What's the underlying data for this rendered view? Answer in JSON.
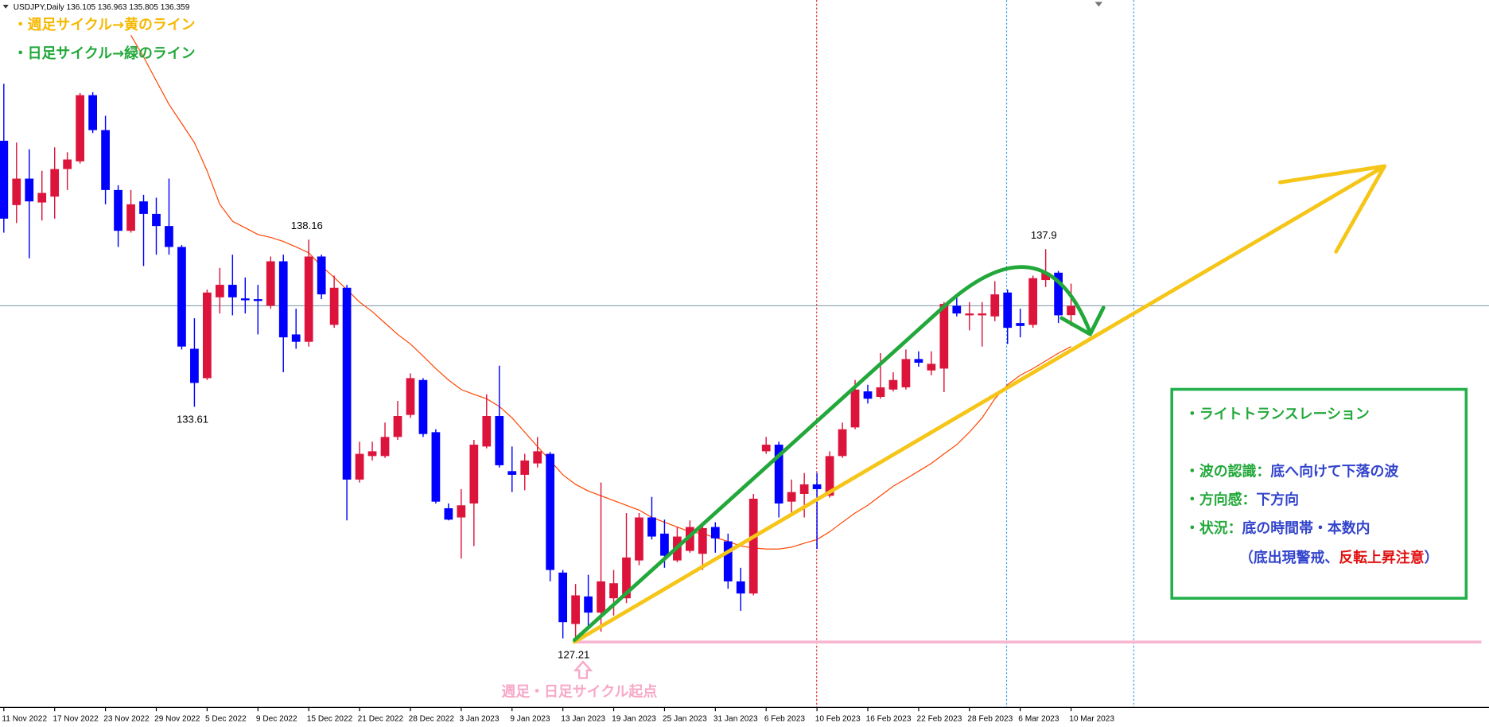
{
  "header": "USDJPY,Daily  136.105 136.963 135.805 136.359",
  "notes": [
    {
      "text": "・週足サイクル→黄のライン",
      "color": "#f5b800"
    },
    {
      "text": "・日足サイクル→緑のライン",
      "color": "#22a83a"
    }
  ],
  "box": {
    "border_color": "#22b04b",
    "lines": [
      [
        {
          "text": "・ライトトランスレーション",
          "color": "#22a83a"
        }
      ],
      [
        {
          "text": "・波の認識：",
          "color": "#22a83a"
        },
        {
          "text": "底へ向けて下落の波",
          "color": "#3344cc"
        }
      ],
      [
        {
          "text": "・方向感：",
          "color": "#22a83a"
        },
        {
          "text": "下方向",
          "color": "#3344cc"
        }
      ],
      [
        {
          "text": "・状況：",
          "color": "#22a83a"
        },
        {
          "text": "底の時間帯・本数内",
          "color": "#3344cc"
        }
      ],
      [
        {
          "text": "（底出現警戒、",
          "color": "#3344cc"
        },
        {
          "text": "反転上昇注意",
          "color": "#e01010"
        },
        {
          "text": "）",
          "color": "#3344cc"
        }
      ]
    ]
  },
  "origin_label": {
    "text": "週足・日足サイクル起点",
    "color": "#f7a8c8"
  },
  "chart_data": {
    "type": "candlestick",
    "up_color": "#dc143c",
    "down_color": "#0000ff",
    "ylim": [
      125.43,
      144.68
    ],
    "x": [
      "11 Nov 2022",
      null,
      null,
      null,
      "17 Nov 2022",
      null,
      null,
      null,
      "23 Nov 2022",
      null,
      null,
      null,
      "29 Nov 2022",
      null,
      null,
      null,
      "5 Dec 2022",
      null,
      null,
      null,
      "9 Dec 2022",
      null,
      null,
      null,
      "15 Dec 2022",
      null,
      null,
      null,
      "21 Dec 2022",
      null,
      null,
      null,
      "28 Dec 2022",
      null,
      null,
      null,
      "3 Jan 2023",
      null,
      null,
      null,
      "9 Jan 2023",
      null,
      null,
      null,
      "13 Jan 2023",
      null,
      null,
      null,
      "19 Jan 2023",
      null,
      null,
      null,
      "25 Jan 2023",
      null,
      null,
      null,
      "31 Jan 2023",
      null,
      null,
      null,
      "6 Feb 2023",
      null,
      null,
      null,
      "10 Feb 2023",
      null,
      null,
      null,
      "16 Feb 2023",
      null,
      null,
      null,
      "22 Feb 2023",
      null,
      null,
      null,
      "28 Feb 2023",
      null,
      null,
      null,
      "6 Mar 2023",
      null,
      null,
      null,
      "10 Mar 2023"
    ],
    "open": [
      140.85,
      139.1,
      139.82,
      139.17,
      139.33,
      140.08,
      140.29,
      142.09,
      141.14,
      139.51,
      138.4,
      139.2,
      138.86,
      138.53,
      137.96,
      135.19,
      134.39,
      136.59,
      136.93,
      136.56,
      136.54,
      136.36,
      137.57,
      135.58,
      135.38,
      137.7,
      135.84,
      136.85,
      131.63,
      132.27,
      132.27,
      132.79,
      133.39,
      134.34,
      132.92,
      130.85,
      130.6,
      130.98,
      132.53,
      133.36,
      131.86,
      131.76,
      132.07,
      132.33,
      129.1,
      127.7,
      128.45,
      128.01,
      128.4,
      128.4,
      129.43,
      130.6,
      130.16,
      129.43,
      129.69,
      129.61,
      130.34,
      129.95,
      128.86,
      128.53,
      132.4,
      132.58,
      131.03,
      131.24,
      131.5,
      131.19,
      132.27,
      133.05,
      134.03,
      133.88,
      134.08,
      134.14,
      134.91,
      134.6,
      134.65,
      136.36,
      136.1,
      136.1,
      136.07,
      136.72,
      135.89,
      135.84,
      137.06,
      137.26,
      136.105
    ],
    "high": [
      142.4,
      140.8,
      140.62,
      140.03,
      140.67,
      140.54,
      142.15,
      142.17,
      141.53,
      139.64,
      139.51,
      139.38,
      139.3,
      139.82,
      138.01,
      136.02,
      136.8,
      137.39,
      137.75,
      137.13,
      136.93,
      137.7,
      137.75,
      136.28,
      138.16,
      137.75,
      137.18,
      136.93,
      132.66,
      132.66,
      133.18,
      133.77,
      134.52,
      134.39,
      133.0,
      130.98,
      131.37,
      132.71,
      133.95,
      134.73,
      132.53,
      132.33,
      132.79,
      132.38,
      129.17,
      128.79,
      129.04,
      131.55,
      129.17,
      130.72,
      130.72,
      131.16,
      130.54,
      130.34,
      130.52,
      130.47,
      130.47,
      130.16,
      129.23,
      131.24,
      132.79,
      132.66,
      131.63,
      131.81,
      131.81,
      132.4,
      133.18,
      134.34,
      134.21,
      135.07,
      134.55,
      135.17,
      135.12,
      135.12,
      136.46,
      136.67,
      136.46,
      136.46,
      137.03,
      136.8,
      136.28,
      137.18,
      137.9,
      137.31,
      136.963
    ],
    "low": [
      138.35,
      138.61,
      137.65,
      138.68,
      138.73,
      139.51,
      140.23,
      141.06,
      139.12,
      137.96,
      138.35,
      137.44,
      137.75,
      137.75,
      135.17,
      133.61,
      134.34,
      136.15,
      136.1,
      136.15,
      135.58,
      136.28,
      134.55,
      135.19,
      135.25,
      136.54,
      135.76,
      130.52,
      131.55,
      132.15,
      132.22,
      132.71,
      133.31,
      132.79,
      130.98,
      130.52,
      129.48,
      129.82,
      132.48,
      131.96,
      131.29,
      131.34,
      131.96,
      128.86,
      127.31,
      127.21,
      127.62,
      127.49,
      127.93,
      128.27,
      129.3,
      130.0,
      129.23,
      129.38,
      129.64,
      129.17,
      129.64,
      128.66,
      128.06,
      128.48,
      132.33,
      130.6,
      130.72,
      130.6,
      129.74,
      131.14,
      132.22,
      133.0,
      133.7,
      133.83,
      134.03,
      134.08,
      134.7,
      134.47,
      134.01,
      136.07,
      135.69,
      135.25,
      135.94,
      135.32,
      135.5,
      135.76,
      136.87,
      135.89,
      135.805
    ],
    "close": [
      138.73,
      139.82,
      139.2,
      139.43,
      140.08,
      140.34,
      142.09,
      141.14,
      139.51,
      138.4,
      139.12,
      138.86,
      138.53,
      137.96,
      135.25,
      134.26,
      136.72,
      136.93,
      136.59,
      136.51,
      136.49,
      137.57,
      135.5,
      135.38,
      137.7,
      136.67,
      136.85,
      131.63,
      132.33,
      132.4,
      132.79,
      133.36,
      134.39,
      132.87,
      131.03,
      130.54,
      130.93,
      132.58,
      133.36,
      132.02,
      131.76,
      132.15,
      132.4,
      129.17,
      127.75,
      128.48,
      128.01,
      128.86,
      128.81,
      129.51,
      130.6,
      130.08,
      129.56,
      130.08,
      130.34,
      130.31,
      130.03,
      128.86,
      128.53,
      131.11,
      132.58,
      130.98,
      131.29,
      131.5,
      131.37,
      132.27,
      133.0,
      134.08,
      133.83,
      134.14,
      134.34,
      134.91,
      134.81,
      134.78,
      136.41,
      136.15,
      136.15,
      136.15,
      136.67,
      135.76,
      135.81,
      137.11,
      137.26,
      136.1,
      136.359
    ],
    "overlays": [
      {
        "color": "#ff4500",
        "values": [
          null,
          null,
          null,
          null,
          null,
          null,
          null,
          null,
          null,
          null,
          143.72,
          143.13,
          142.48,
          141.84,
          141.32,
          140.8,
          140.03,
          139.12,
          138.66,
          138.48,
          138.3,
          138.22,
          138.11,
          137.96,
          137.8,
          137.44,
          137.13,
          136.8,
          136.46,
          136.2,
          135.89,
          135.58,
          135.32,
          134.99,
          134.65,
          134.34,
          134.08,
          133.95,
          133.83,
          133.62,
          133.31,
          132.92,
          132.53,
          132.15,
          131.76,
          131.5,
          131.32,
          131.19,
          131.06,
          130.93,
          130.8,
          130.6,
          130.47,
          130.34,
          130.21,
          130.16,
          130.05,
          129.95,
          129.82,
          129.77,
          129.74,
          129.74,
          129.79,
          129.9,
          130.0,
          130.21,
          130.47,
          130.72,
          130.93,
          131.19,
          131.45,
          131.65,
          131.86,
          132.07,
          132.33,
          132.58,
          132.92,
          133.31,
          133.83,
          134.21,
          134.47,
          134.65,
          134.86,
          135.07,
          135.25
        ]
      }
    ]
  }
}
